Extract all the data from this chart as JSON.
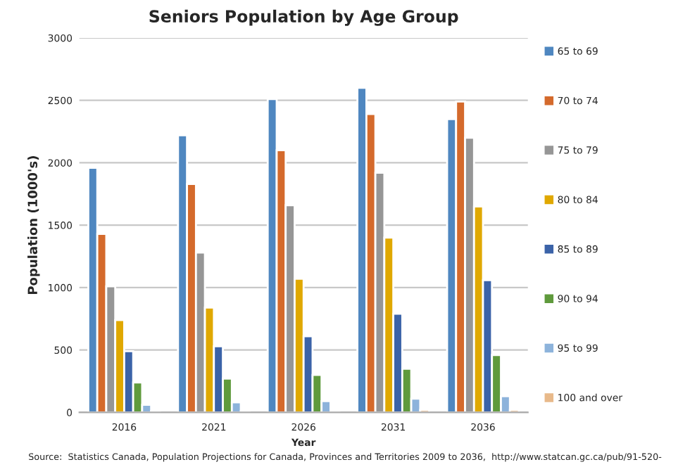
{
  "chart_data": {
    "type": "bar",
    "title": "Seniors Population by Age Group",
    "xlabel": "Year",
    "ylabel": "Population (1000's)",
    "categories": [
      "2016",
      "2021",
      "2026",
      "2031",
      "2036"
    ],
    "series": [
      {
        "name": "65 to 69",
        "color": "#4f87c0",
        "values": [
          1960,
          2220,
          2510,
          2600,
          2350
        ]
      },
      {
        "name": "70 to 74",
        "color": "#d46a2c",
        "values": [
          1430,
          1830,
          2100,
          2390,
          2490
        ]
      },
      {
        "name": "75 to 79",
        "color": "#969696",
        "values": [
          1010,
          1280,
          1660,
          1920,
          2200
        ]
      },
      {
        "name": "80 to 84",
        "color": "#e0a800",
        "values": [
          740,
          840,
          1070,
          1400,
          1650
        ]
      },
      {
        "name": "85 to 89",
        "color": "#3b63a8",
        "values": [
          490,
          530,
          610,
          790,
          1060
        ]
      },
      {
        "name": "90 to 94",
        "color": "#5f9a3c",
        "values": [
          240,
          270,
          300,
          350,
          460
        ]
      },
      {
        "name": "95 to 99",
        "color": "#8db3db",
        "values": [
          60,
          80,
          90,
          110,
          130
        ]
      },
      {
        "name": "100 and over",
        "color": "#e8b98a",
        "values": [
          10,
          10,
          10,
          20,
          20
        ]
      }
    ],
    "ylim": [
      0,
      3000
    ],
    "yticks": [
      0,
      500,
      1000,
      1500,
      2000,
      2500,
      3000
    ],
    "grid": "y",
    "legend": "right",
    "annotations": [
      "Source:  Statistics Canada, Population Projections for Canada, Provinces and Territories 2009 to 2036,  http://www.statcan.gc.ca/pub/91-520-"
    ]
  }
}
